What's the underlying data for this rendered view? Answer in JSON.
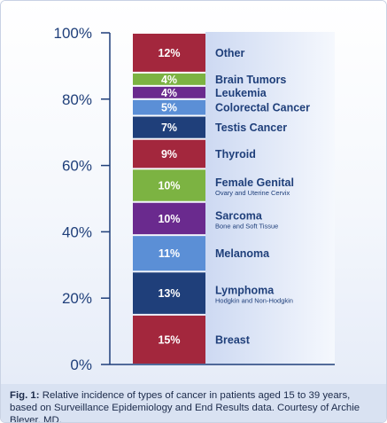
{
  "chart_data": {
    "type": "bar",
    "stacked": true,
    "ylim": [
      0,
      100
    ],
    "y_ticks": [
      "0%",
      "20%",
      "40%",
      "60%",
      "80%",
      "100%"
    ],
    "grid": false,
    "segments": [
      {
        "name": "Breast",
        "sub": "",
        "value": 15,
        "label": "15%",
        "color": "#a3273d"
      },
      {
        "name": "Lymphoma",
        "sub": "Hodgkin and Non-Hodgkin",
        "value": 13,
        "label": "13%",
        "color": "#1f3f7a"
      },
      {
        "name": "Melanoma",
        "sub": "",
        "value": 11,
        "label": "11%",
        "color": "#5b8fd6"
      },
      {
        "name": "Sarcoma",
        "sub": "Bone and Soft Tissue",
        "value": 10,
        "label": "10%",
        "color": "#6a2a8e"
      },
      {
        "name": "Female Genital",
        "sub": "Ovary and Uterine Cervix",
        "value": 10,
        "label": "10%",
        "color": "#7cb342"
      },
      {
        "name": "Thyroid",
        "sub": "",
        "value": 9,
        "label": "9%",
        "color": "#a3273d"
      },
      {
        "name": "Testis Cancer",
        "sub": "",
        "value": 7,
        "label": "7%",
        "color": "#1f3f7a"
      },
      {
        "name": "Colorectal Cancer",
        "sub": "",
        "value": 5,
        "label": "5%",
        "color": "#5b8fd6"
      },
      {
        "name": "Leukemia",
        "sub": "",
        "value": 4,
        "label": "4%",
        "color": "#6a2a8e"
      },
      {
        "name": "Brain Tumors",
        "sub": "",
        "value": 4,
        "label": "4%",
        "color": "#7cb342"
      },
      {
        "name": "Other",
        "sub": "",
        "value": 12,
        "label": "12%",
        "color": "#a3273d"
      }
    ]
  },
  "caption": {
    "prefix": "Fig. 1:",
    "text": " Relative incidence of types of cancer in patients aged 15 to 39 years, based on Surveillance Epidemiology and End Results data. Courtesy of Archie Bleyer, MD."
  },
  "colors": {
    "axis": "#1f3f7a",
    "label_text": "#1f3f7a",
    "caption_bg": "#d9e2f2"
  }
}
